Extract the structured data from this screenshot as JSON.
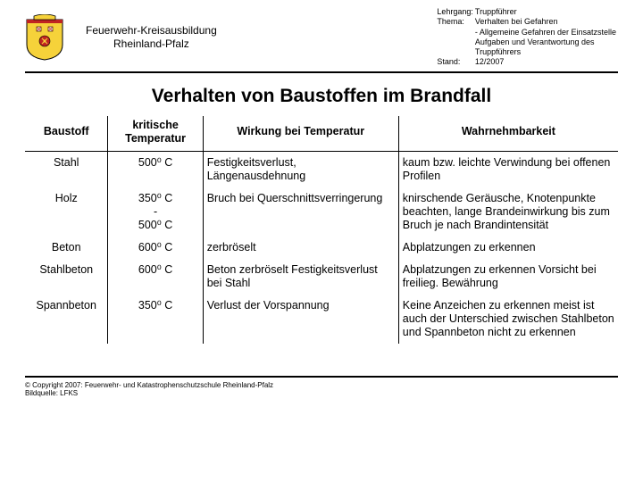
{
  "header": {
    "org_line1": "Feuerwehr-Kreisausbildung",
    "org_line2": "Rheinland-Pfalz",
    "meta": {
      "lehrgang_label": "Lehrgang:",
      "lehrgang": "Truppführer",
      "thema_label": "Thema:",
      "thema": "Verhalten bei Gefahren\n- Allgemeine Gefahren der Einsatzstelle\nAufgaben und Verantwortung des\nTruppführers",
      "stand_label": "Stand:",
      "stand": "12/2007"
    },
    "crest_colors": {
      "yellow": "#f6d23a",
      "red": "#c02422",
      "black": "#000000",
      "white": "#ffffff"
    }
  },
  "title": "Verhalten von Baustoffen im Brandfall",
  "table": {
    "columns": [
      "Baustoff",
      "kritische Temperatur",
      "Wirkung bei Temperatur",
      "Wahrnehmbarkeit"
    ],
    "col_widths_pct": [
      14,
      16,
      33,
      37
    ],
    "rows": [
      {
        "baustoff": "Stahl",
        "temp": "500⁰ C",
        "wirkung": "Festigkeitsverlust, Längenausdehnung",
        "wahrnehmbarkeit": "kaum bzw. leichte Verwindung bei offenen Profilen"
      },
      {
        "baustoff": "Holz",
        "temp": "350⁰ C\n-\n500⁰ C",
        "wirkung": "Bruch bei Querschnittsverringerung",
        "wahrnehmbarkeit": "knirschende Geräusche, Knotenpunkte beachten, lange Brandeinwirkung bis zum Bruch je nach Brandintensität"
      },
      {
        "baustoff": "Beton",
        "temp": "600⁰ C",
        "wirkung": "zerbröselt",
        "wahrnehmbarkeit": "Abplatzungen zu erkennen"
      },
      {
        "baustoff": "Stahlbeton",
        "temp": "600⁰ C",
        "wirkung": "Beton zerbröselt Festigkeitsverlust bei Stahl",
        "wahrnehmbarkeit": "Abplatzungen zu erkennen Vorsicht bei freilieg. Bewährung"
      },
      {
        "baustoff": "Spannbeton",
        "temp": "350⁰ C",
        "wirkung": "Verlust der Vorspannung",
        "wahrnehmbarkeit": "Keine Anzeichen zu erkennen meist ist auch der Unterschied zwischen Stahlbeton und Spannbeton nicht zu erkennen"
      }
    ]
  },
  "footer": {
    "line1": "© Copyright 2007: Feuerwehr- und Katastrophenschutzschule Rheinland-Pfalz",
    "line2": "Bildquelle: LFKS"
  }
}
